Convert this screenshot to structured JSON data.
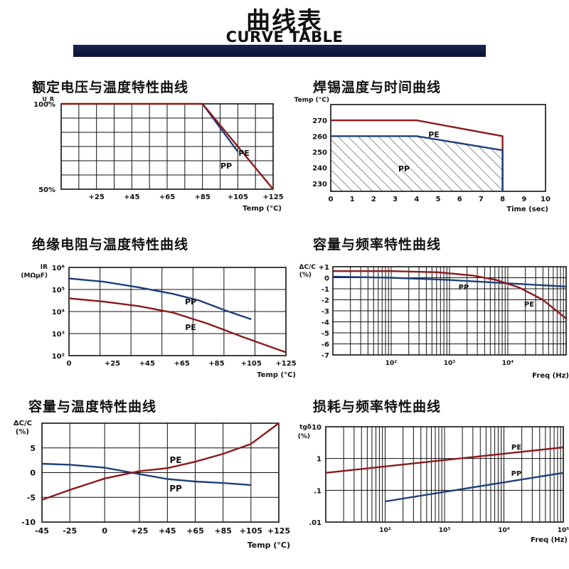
{
  "header": {
    "title": "曲线表",
    "subtitle": "CURVE TABLE"
  },
  "colors": {
    "pe_line": "#8b1a1a",
    "pp_line": "#1f3f7a",
    "grid": "#111111",
    "header_bar": "#131c40"
  },
  "chart_data": [
    {
      "type": "line",
      "title": "额定电压与温度特性曲线",
      "ylabel": "U_R",
      "xlabel": "Temp (°C)",
      "x_ticks": [
        "+25",
        "+45",
        "+65",
        "+85",
        "+105",
        "+125"
      ],
      "y_ticks": [
        "100%",
        "50%"
      ],
      "xlim": [
        5,
        125
      ],
      "ylim": [
        50,
        100
      ],
      "grid": true,
      "series": [
        {
          "name": "PE",
          "x": [
            5,
            85,
            125
          ],
          "y": [
            100,
            100,
            50
          ]
        },
        {
          "name": "PP",
          "x": [
            85,
            105
          ],
          "y": [
            100,
            72
          ]
        }
      ]
    },
    {
      "type": "area",
      "title": "焊锡温度与时间曲线",
      "ylabel": "Temp (°C)",
      "xlabel": "Time (sec)",
      "x_ticks": [
        "0",
        "1",
        "2",
        "3",
        "4",
        "5",
        "6",
        "7",
        "8",
        "9",
        "10"
      ],
      "y_ticks": [
        "270",
        "260",
        "250",
        "240",
        "230"
      ],
      "xlim": [
        0,
        10
      ],
      "ylim": [
        225,
        280
      ],
      "grid": false,
      "series": [
        {
          "name": "PE",
          "x": [
            0,
            4,
            8,
            8
          ],
          "y": [
            270,
            270,
            260,
            225
          ]
        },
        {
          "name": "PP",
          "x": [
            0,
            4,
            8,
            8
          ],
          "y": [
            260,
            260,
            251,
            225
          ],
          "fill": "hatched"
        }
      ]
    },
    {
      "type": "line",
      "title": "绝缘电阻与温度特性曲线",
      "ylabel": "IR (MΩμF)",
      "xlabel": "Temp (°C)",
      "x_ticks": [
        "0",
        "+25",
        "+45",
        "+65",
        "+85",
        "+105",
        "+125"
      ],
      "y_ticks": [
        "10⁶",
        "10⁵",
        "10⁴",
        "10³",
        "10²"
      ],
      "xlim": [
        0,
        125
      ],
      "ylim": [
        2,
        6
      ],
      "scale": "log",
      "grid": true,
      "series": [
        {
          "name": "PP",
          "x": [
            0,
            20,
            40,
            60,
            75,
            90,
            105
          ],
          "y": [
            5.5,
            5.35,
            5.1,
            4.8,
            4.5,
            4.05,
            3.65
          ]
        },
        {
          "name": "PE",
          "x": [
            0,
            20,
            40,
            60,
            80,
            100,
            125
          ],
          "y": [
            4.6,
            4.45,
            4.25,
            3.95,
            3.45,
            2.85,
            2.15
          ]
        }
      ]
    },
    {
      "type": "line",
      "title": "容量与频率特性曲线",
      "ylabel": "ΔC/C (%)",
      "xlabel": "Freq (Hz)",
      "x_ticks": [
        "10²",
        "10³",
        "10⁴"
      ],
      "y_ticks": [
        "+1",
        "0",
        "-1",
        "-2",
        "-3",
        "-4",
        "-5",
        "-6",
        "-7"
      ],
      "xlim": [
        1,
        5
      ],
      "ylim": [
        -7,
        1
      ],
      "scale": "log-x",
      "grid": true,
      "series": [
        {
          "name": "PE",
          "x": [
            1,
            2,
            2.8,
            3.4,
            3.8,
            4.2,
            4.6,
            5
          ],
          "y": [
            0.6,
            0.6,
            0.5,
            0.2,
            -0.2,
            -0.9,
            -2.0,
            -3.7
          ]
        },
        {
          "name": "PP",
          "x": [
            1,
            2,
            3,
            4,
            5
          ],
          "y": [
            0.1,
            0.0,
            -0.2,
            -0.5,
            -0.8
          ]
        }
      ]
    },
    {
      "type": "line",
      "title": "容量与温度特性曲线",
      "ylabel": "ΔC/C (%)",
      "xlabel": "Temp (°C)",
      "x_ticks": [
        "-45",
        "-25",
        "0",
        "+25",
        "+45",
        "+65",
        "+85",
        "+105",
        "+125"
      ],
      "y_ticks": [
        "5",
        "0",
        "-5",
        "-10"
      ],
      "xlim": [
        -45,
        125
      ],
      "ylim": [
        -10,
        10
      ],
      "grid": true,
      "series": [
        {
          "name": "PE",
          "x": [
            -45,
            -25,
            0,
            25,
            45,
            65,
            85,
            105,
            125
          ],
          "y": [
            -5.5,
            -3.5,
            -1.2,
            0.3,
            0.9,
            2.2,
            3.8,
            5.8,
            10
          ]
        },
        {
          "name": "PP",
          "x": [
            -45,
            -25,
            0,
            25,
            45,
            65,
            85,
            105
          ],
          "y": [
            1.8,
            1.6,
            1.0,
            -0.3,
            -1.3,
            -1.8,
            -2.1,
            -2.5
          ]
        }
      ]
    },
    {
      "type": "line",
      "title": "损耗与频率特性曲线",
      "ylabel": "tgδ (%)",
      "xlabel": "Freq (Hz)",
      "x_ticks": [
        "10²",
        "10³",
        "10⁴",
        "10⁵"
      ],
      "y_ticks": [
        "10",
        "1",
        ".1",
        ".01"
      ],
      "xlim": [
        1,
        5
      ],
      "ylim": [
        -2,
        1
      ],
      "scale": "log",
      "grid": true,
      "series": [
        {
          "name": "PE",
          "x": [
            1,
            5
          ],
          "y": [
            -0.45,
            0.35
          ]
        },
        {
          "name": "PP",
          "x": [
            2,
            5
          ],
          "y": [
            -1.35,
            -0.45
          ]
        }
      ]
    }
  ]
}
